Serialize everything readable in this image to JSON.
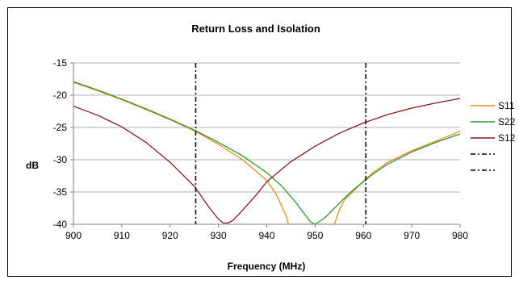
{
  "chart_data": {
    "type": "line",
    "title": "Return Loss and Isolation",
    "xlabel": "Frequency (MHz)",
    "ylabel": "dB",
    "xlim": [
      900,
      980
    ],
    "ylim": [
      -40,
      -15
    ],
    "xticks": [
      900,
      910,
      920,
      930,
      940,
      950,
      960,
      970,
      980
    ],
    "yticks": [
      -15,
      -20,
      -25,
      -30,
      -35,
      -40
    ],
    "grid": "horizontal",
    "legend_position": "right",
    "series": [
      {
        "name": "S11",
        "color": "#f28a1e",
        "x": [
          900,
          905,
          910,
          915,
          920,
          925,
          930,
          935,
          940,
          942,
          944,
          944.5,
          954,
          955,
          956,
          958,
          960,
          962,
          965,
          970,
          975,
          980
        ],
        "y": [
          -18.0,
          -19.3,
          -20.7,
          -22.2,
          -23.8,
          -25.5,
          -27.6,
          -30.0,
          -33.2,
          -35.4,
          -38.7,
          -40.0,
          -40.0,
          -37.8,
          -36.3,
          -34.8,
          -33.3,
          -32.0,
          -30.4,
          -28.6,
          -27.1,
          -25.6
        ]
      },
      {
        "name": "S22",
        "color": "#2e9b2e",
        "x": [
          900,
          905,
          910,
          915,
          920,
          925,
          930,
          935,
          940,
          943,
          946,
          948,
          949,
          950,
          952,
          954,
          956,
          958,
          960,
          962,
          965,
          970,
          975,
          980
        ],
        "y": [
          -17.9,
          -19.2,
          -20.6,
          -22.1,
          -23.7,
          -25.4,
          -27.3,
          -29.4,
          -32.0,
          -34.0,
          -36.6,
          -38.6,
          -39.6,
          -40.0,
          -39.0,
          -37.5,
          -36.0,
          -34.6,
          -33.4,
          -32.2,
          -30.7,
          -28.8,
          -27.3,
          -26.0
        ]
      },
      {
        "name": "S12",
        "color": "#8b1a1a",
        "x": [
          900,
          905,
          910,
          915,
          920,
          925,
          928,
          930,
          931,
          932,
          933,
          935,
          938,
          940,
          945,
          950,
          955,
          960,
          965,
          970,
          975,
          980
        ],
        "y": [
          -21.7,
          -23.1,
          -24.9,
          -27.3,
          -30.4,
          -34.1,
          -37.3,
          -39.2,
          -39.8,
          -39.8,
          -39.4,
          -37.8,
          -35.3,
          -33.4,
          -30.3,
          -27.9,
          -25.9,
          -24.3,
          -23.0,
          -22.0,
          -21.2,
          -20.5
        ]
      }
    ],
    "vertical_lines": [
      {
        "x": 925.3,
        "style": "dash-dot",
        "color": "#000000"
      },
      {
        "x": 960.5,
        "style": "dash-dot",
        "color": "#000000"
      }
    ],
    "legend_extra_entries": [
      {
        "style": "dash-dot",
        "color": "#000000"
      },
      {
        "style": "dash-dot",
        "color": "#000000"
      }
    ]
  }
}
